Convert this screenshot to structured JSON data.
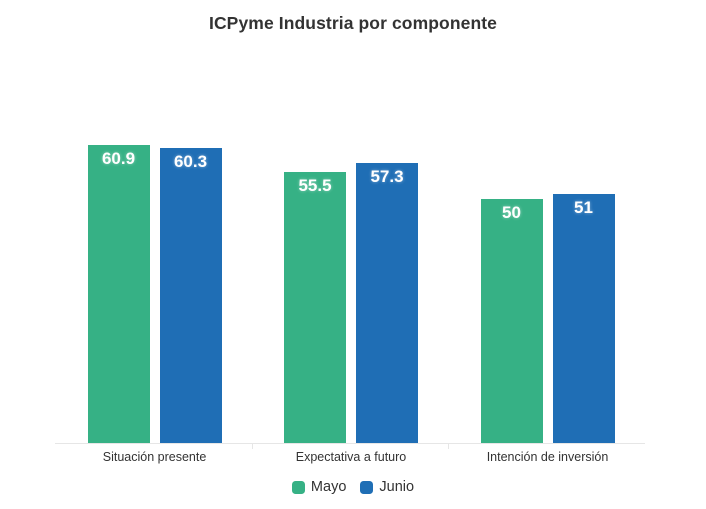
{
  "title": "ICPyme Industria por componente",
  "chart_data": {
    "type": "bar",
    "title": "ICPyme Industria por componente",
    "categories": [
      "Situación presente",
      "Expectativa a futuro",
      "Intención de inversión"
    ],
    "series": [
      {
        "name": "Mayo",
        "color": "#36B185",
        "values": [
          60.9,
          55.5,
          50
        ]
      },
      {
        "name": "Junio",
        "color": "#1F6EB5",
        "values": [
          60.3,
          57.3,
          51
        ]
      }
    ],
    "xlabel": "",
    "ylabel": "",
    "ylim": [
      0,
      65
    ],
    "grid": false,
    "y_axis_visible": false,
    "axis_line_color": "#e6e6e6",
    "text_color": "#333333",
    "value_label_color": "#ffffff",
    "legend_position": "bottom"
  }
}
